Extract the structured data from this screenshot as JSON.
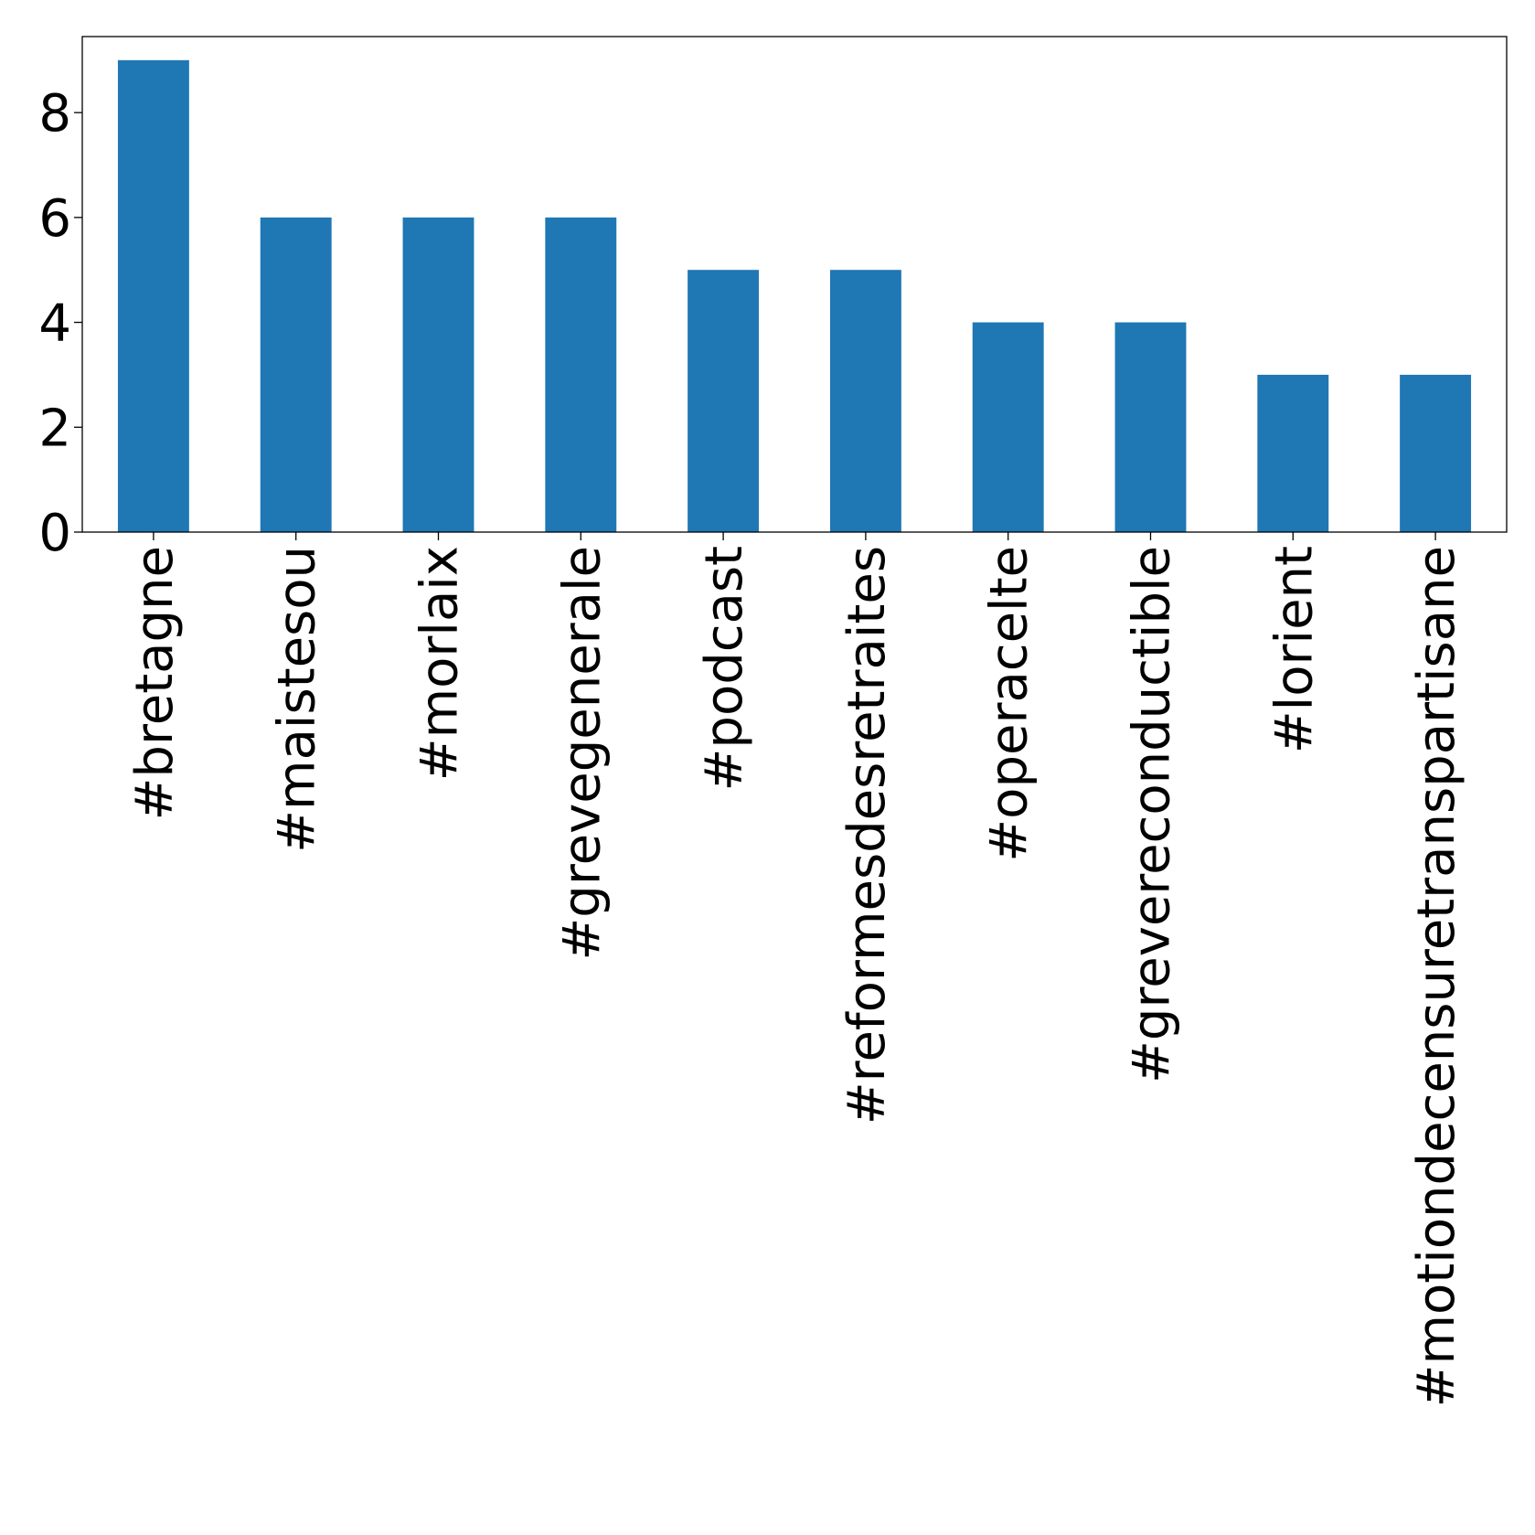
{
  "chart_data": {
    "type": "bar",
    "title": "",
    "xlabel": "",
    "ylabel": "",
    "categories": [
      "#bretagne",
      "#maistesou",
      "#morlaix",
      "#grevegenerale",
      "#podcast",
      "#reformesdesretraites",
      "#operacelte",
      "#grevereconductible",
      "#lorient",
      "#motiondecensuretranspartisane"
    ],
    "values": [
      9,
      6,
      6,
      6,
      5,
      5,
      4,
      4,
      3,
      3
    ],
    "ylim": [
      0,
      9.45
    ],
    "yticks": [
      0,
      2,
      4,
      6,
      8
    ],
    "grid": false,
    "bar_color": "#1f77b4"
  }
}
